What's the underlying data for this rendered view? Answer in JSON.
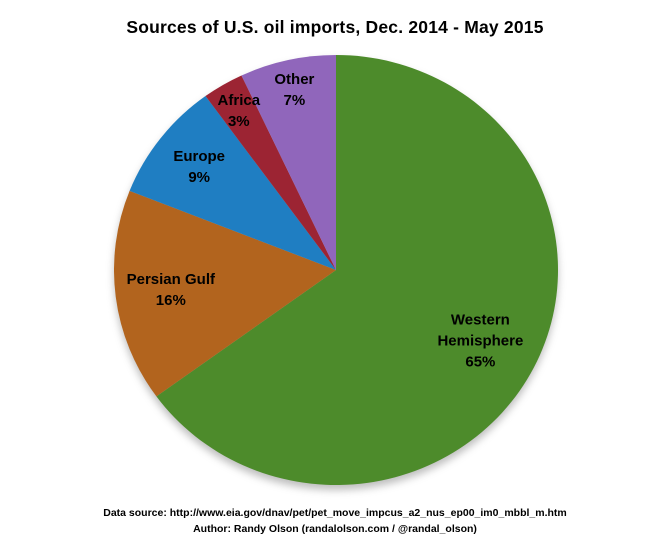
{
  "title": "Sources of U.S. oil imports, Dec. 2014 - May 2015",
  "chart_data": {
    "type": "pie",
    "title": "Sources of U.S. oil imports, Dec. 2014 - May 2015",
    "start_angle_deg": 0,
    "direction": "clockwise",
    "legend": "none",
    "labels_on_slices": true,
    "label_text_color": "#000000",
    "background_color": "#ffffff",
    "slices": [
      {
        "label": "Western Hemisphere",
        "value_pct": 65,
        "value_label": "65%",
        "color": "#4d8b2b",
        "label_radius": 0.73
      },
      {
        "label": "Persian Gulf",
        "value_pct": 16,
        "value_label": "16%",
        "color": "#b2641e",
        "label_radius": 0.75
      },
      {
        "label": "Europe",
        "value_pct": 9,
        "value_label": "9%",
        "color": "#1f7ec2",
        "label_radius": 0.78
      },
      {
        "label": "Africa",
        "value_pct": 3,
        "value_label": "3%",
        "color": "#9c2433",
        "label_radius": 0.86
      },
      {
        "label": "Other",
        "value_pct": 7,
        "value_label": "7%",
        "color": "#9066bb",
        "label_radius": 0.86
      }
    ]
  },
  "footer": {
    "data_source": "Data source: http://www.eia.gov/dnav/pet/pet_move_impcus_a2_nus_ep00_im0_mbbl_m.htm",
    "author": "Author: Randy Olson (randalolson.com / @randal_olson)"
  }
}
